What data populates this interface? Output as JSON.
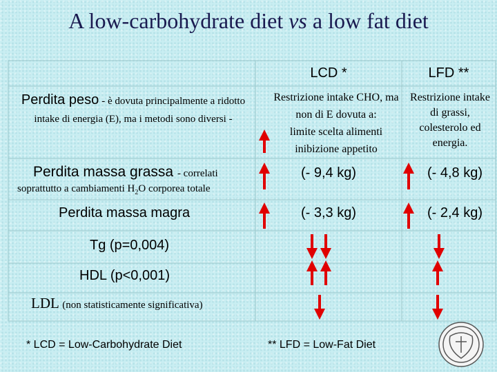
{
  "title": [
    "A low-carbohydrate diet",
    "vs",
    "a low fat diet"
  ],
  "table": {
    "header": [
      "LCD *",
      "LFD **"
    ],
    "rows": [
      {
        "label": "Perdita peso",
        "note": "- è dovuta principalmente a ridotto intake di energia (E), ma i metodi sono diversi -",
        "lcd": [
          "Restrizione intake CHO, ma non di E dovuta a:",
          "limite scelta alimenti",
          "inibizione appetito"
        ],
        "lfd": "Restrizione intake di grassi, colesterolo ed energia."
      },
      {
        "label": "Perdita massa grassa",
        "note": [
          "- correlati",
          "soprattutto a cambiamenti H",
          "2",
          "O corporea totale"
        ],
        "lcd": "(- 9,4 kg)",
        "lfd": "(- 4,8 kg)"
      },
      {
        "label": "Perdita massa magra",
        "lcd": "(- 3,3 kg)",
        "lfd": "(- 2,4 kg)"
      },
      {
        "label": "Tg (p=0,004)"
      },
      {
        "label": "HDL (p<0,001)"
      },
      {
        "label": "LDL",
        "note": "(non statisticamente significativa)"
      }
    ]
  },
  "footnotes": [
    "* LCD = Low-Carbohydrate Diet",
    "** LFD = Low-Fat Diet"
  ]
}
